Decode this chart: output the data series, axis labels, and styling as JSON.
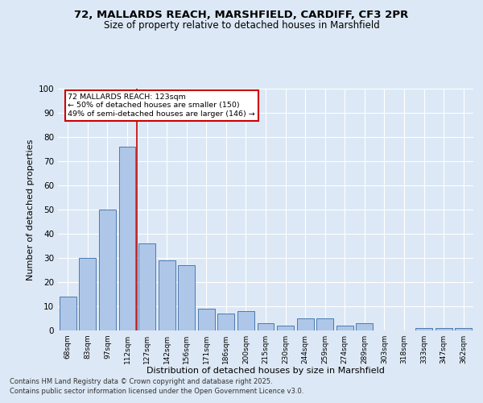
{
  "title_line1": "72, MALLARDS REACH, MARSHFIELD, CARDIFF, CF3 2PR",
  "title_line2": "Size of property relative to detached houses in Marshfield",
  "xlabel": "Distribution of detached houses by size in Marshfield",
  "ylabel": "Number of detached properties",
  "categories": [
    "68sqm",
    "83sqm",
    "97sqm",
    "112sqm",
    "127sqm",
    "142sqm",
    "156sqm",
    "171sqm",
    "186sqm",
    "200sqm",
    "215sqm",
    "230sqm",
    "244sqm",
    "259sqm",
    "274sqm",
    "289sqm",
    "303sqm",
    "318sqm",
    "333sqm",
    "347sqm",
    "362sqm"
  ],
  "values": [
    14,
    30,
    50,
    76,
    36,
    29,
    27,
    9,
    7,
    8,
    3,
    2,
    5,
    5,
    2,
    3,
    0,
    0,
    1,
    1,
    1
  ],
  "bar_color": "#aec6e8",
  "bar_edge_color": "#4c7ab0",
  "background_color": "#dce8f5",
  "grid_color": "#ffffff",
  "vline_color": "#cc0000",
  "vline_index": 3.5,
  "annotation_box_text_line1": "72 MALLARDS REACH: 123sqm",
  "annotation_box_text_line2": "← 50% of detached houses are smaller (150)",
  "annotation_box_text_line3": "49% of semi-detached houses are larger (146) →",
  "annotation_box_color": "#cc0000",
  "ylim": [
    0,
    100
  ],
  "yticks": [
    0,
    10,
    20,
    30,
    40,
    50,
    60,
    70,
    80,
    90,
    100
  ],
  "footnote_line1": "Contains HM Land Registry data © Crown copyright and database right 2025.",
  "footnote_line2": "Contains public sector information licensed under the Open Government Licence v3.0."
}
